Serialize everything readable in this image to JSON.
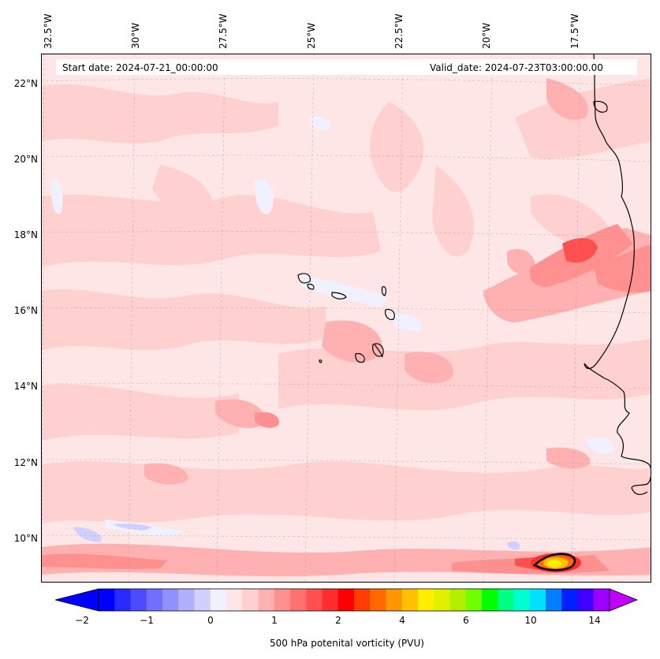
{
  "header": {
    "start_date": "Start date: 2024-07-21_00:00:00",
    "valid_date": "Valid_date: 2024-07-23T03:00:00.00"
  },
  "axes": {
    "longitude_labels": [
      "32.5°W",
      "30°W",
      "27.5°W",
      "25°W",
      "22.5°W",
      "20°W",
      "17.5°W"
    ],
    "latitude_labels": [
      "22°N",
      "20°N",
      "18°N",
      "16°N",
      "14°N",
      "12°N",
      "10°N"
    ]
  },
  "colorbar": {
    "label": "500 hPa potenital vorticity (PVU)",
    "ticks": [
      "−2",
      "−1",
      "0",
      "1",
      "2",
      "4",
      "6",
      "10",
      "14"
    ],
    "colors": [
      "#0000ff",
      "#2a2aff",
      "#4d4dff",
      "#7070ff",
      "#9090ff",
      "#b0b0ff",
      "#d0d0ff",
      "#f0f0ff",
      "#ffe6e6",
      "#ffd0d0",
      "#ffb0b0",
      "#ff9090",
      "#ff7070",
      "#ff5050",
      "#ff2d2d",
      "#ff0000",
      "#ff3c00",
      "#ff6a00",
      "#ff9600",
      "#ffc000",
      "#ffee00",
      "#e0f000",
      "#b0f000",
      "#70ff00",
      "#00ff00",
      "#00ff80",
      "#00ffd0",
      "#00e0ff",
      "#0080ff",
      "#0020ff",
      "#4000ff",
      "#a000ff"
    ],
    "min_color": "#0000ff",
    "max_color": "#c000ff"
  },
  "map": {
    "background_color": "#ffe6e6",
    "coast_color": "#000000",
    "gridlines": true
  }
}
